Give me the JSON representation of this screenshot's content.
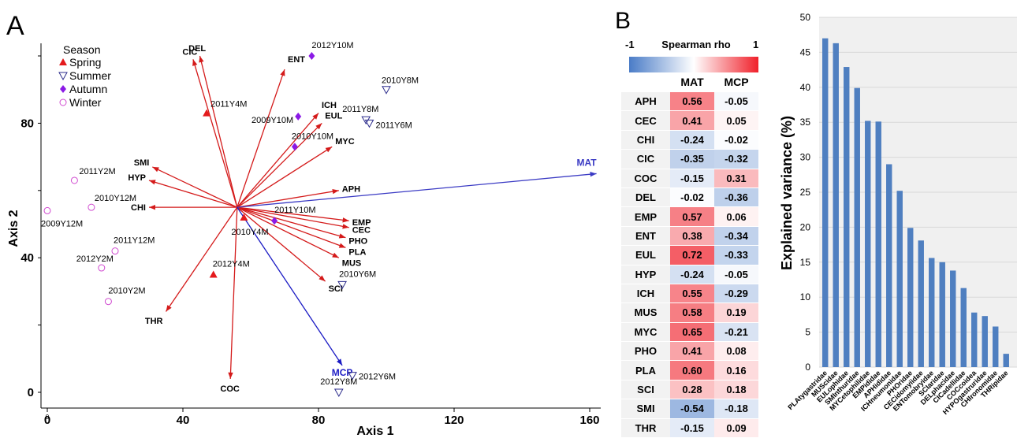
{
  "panel_a_label": "A",
  "panel_b_label": "B",
  "chart_data": [
    {
      "type": "scatter",
      "subtype": "biplot",
      "xlabel": "Axis 1",
      "ylabel": "Axis 2",
      "xlim": [
        0,
        160
      ],
      "ylim": [
        0,
        100
      ],
      "xticks": [
        0,
        40,
        80,
        120,
        160
      ],
      "yticks": [
        0,
        40,
        80
      ],
      "small_tick_label": "0",
      "legend_position": "top-left",
      "legend_title": "Season",
      "seasons": [
        {
          "name": "Spring",
          "marker": "triangle-up",
          "color": "#e41a1c"
        },
        {
          "name": "Summer",
          "marker": "triangle-down-open",
          "color": "#2c2c8c"
        },
        {
          "name": "Autumn",
          "marker": "diamond",
          "color": "#8b1ae6"
        },
        {
          "name": "Winter",
          "marker": "circle-open",
          "color": "#d04ad0"
        }
      ],
      "origin": [
        56,
        55
      ],
      "taxa_arrows": [
        {
          "label": "DEL",
          "x": 45,
          "y": 100
        },
        {
          "label": "CIC",
          "x": 43,
          "y": 99
        },
        {
          "label": "ENT",
          "x": 70,
          "y": 96
        },
        {
          "label": "ICH",
          "x": 80,
          "y": 83
        },
        {
          "label": "EUL",
          "x": 81,
          "y": 80
        },
        {
          "label": "MYC",
          "x": 84,
          "y": 73
        },
        {
          "label": "SMI",
          "x": 31,
          "y": 67
        },
        {
          "label": "HYP",
          "x": 30,
          "y": 63
        },
        {
          "label": "APH",
          "x": 86,
          "y": 60
        },
        {
          "label": "CHI",
          "x": 30,
          "y": 55
        },
        {
          "label": "EMP",
          "x": 89,
          "y": 51
        },
        {
          "label": "CEC",
          "x": 89,
          "y": 49
        },
        {
          "label": "PHO",
          "x": 88,
          "y": 46
        },
        {
          "label": "PLA",
          "x": 88,
          "y": 43
        },
        {
          "label": "MUS",
          "x": 86,
          "y": 40
        },
        {
          "label": "SCI",
          "x": 82,
          "y": 33
        },
        {
          "label": "THR",
          "x": 35,
          "y": 24
        },
        {
          "label": "COC",
          "x": 54,
          "y": 4
        }
      ],
      "env_arrows": [
        {
          "label": "MAT",
          "x": 162,
          "y": 65,
          "color": "#3b3bc4"
        },
        {
          "label": "MCP",
          "x": 87,
          "y": 8,
          "color": "#1b1bc4"
        }
      ],
      "samples": [
        {
          "label": "2011Y4M",
          "season": "Spring",
          "x": 47,
          "y": 83
        },
        {
          "label": "2010Y4M",
          "season": "Spring",
          "x": 58,
          "y": 52
        },
        {
          "label": "2012Y4M",
          "season": "Spring",
          "x": 49,
          "y": 35
        },
        {
          "label": "2010Y8M",
          "season": "Summer",
          "x": 100,
          "y": 90
        },
        {
          "label": "2011Y8M",
          "season": "Summer",
          "x": 94,
          "y": 81
        },
        {
          "label": "2011Y6M",
          "season": "Summer",
          "x": 95,
          "y": 80
        },
        {
          "label": "2010Y6M",
          "season": "Summer",
          "x": 87,
          "y": 32
        },
        {
          "label": "2012Y6M",
          "season": "Summer",
          "x": 90,
          "y": 5
        },
        {
          "label": "2012Y8M",
          "season": "Summer",
          "x": 86,
          "y": 0
        },
        {
          "label": "2012Y10M",
          "season": "Autumn",
          "x": 78,
          "y": 100
        },
        {
          "label": "2009Y10M",
          "season": "Autumn",
          "x": 74,
          "y": 82
        },
        {
          "label": "2010Y10M",
          "season": "Autumn",
          "x": 73,
          "y": 73
        },
        {
          "label": "2011Y10M",
          "season": "Autumn",
          "x": 67,
          "y": 51
        },
        {
          "label": "2011Y2M",
          "season": "Winter",
          "x": 8,
          "y": 63
        },
        {
          "label": "2010Y12M",
          "season": "Winter",
          "x": 13,
          "y": 55
        },
        {
          "label": "2009Y12M",
          "season": "Winter",
          "x": 0,
          "y": 54
        },
        {
          "label": "2011Y12M",
          "season": "Winter",
          "x": 20,
          "y": 42
        },
        {
          "label": "2012Y2M",
          "season": "Winter",
          "x": 16,
          "y": 37
        },
        {
          "label": "2010Y2M",
          "season": "Winter",
          "x": 18,
          "y": 27
        }
      ]
    },
    {
      "type": "heatmap",
      "title": "Spearman rho",
      "scale_min_label": "-1",
      "scale_max_label": "1",
      "scale_min": -1,
      "scale_max": 1,
      "colors": {
        "negative": "#4a7cc7",
        "zero": "#ffffff",
        "positive": "#f0202a"
      },
      "columns": [
        "MAT",
        "MCP"
      ],
      "rows": [
        {
          "label": "APH",
          "values": [
            0.56,
            -0.05
          ],
          "text": [
            "0.56",
            "-0.05"
          ]
        },
        {
          "label": "CEC",
          "values": [
            0.41,
            0.05
          ],
          "text": [
            "0.41",
            "0.05"
          ]
        },
        {
          "label": "CHI",
          "values": [
            -0.24,
            -0.02
          ],
          "text": [
            "-0.24",
            "-0.02"
          ]
        },
        {
          "label": "CIC",
          "values": [
            -0.35,
            -0.32
          ],
          "text": [
            "-0.35",
            "-0.32"
          ]
        },
        {
          "label": "COC",
          "values": [
            -0.15,
            0.31
          ],
          "text": [
            "-0.15",
            "0.31"
          ]
        },
        {
          "label": "DEL",
          "values": [
            -0.02,
            -0.36
          ],
          "text": [
            "-0.02",
            "-0.36"
          ]
        },
        {
          "label": "EMP",
          "values": [
            0.57,
            0.06
          ],
          "text": [
            "0.57",
            "0.06"
          ]
        },
        {
          "label": "ENT",
          "values": [
            0.38,
            -0.34
          ],
          "text": [
            "0.38",
            "-0.34"
          ]
        },
        {
          "label": "EUL",
          "values": [
            0.72,
            -0.33
          ],
          "text": [
            "0.72",
            "-0.33"
          ]
        },
        {
          "label": "HYP",
          "values": [
            -0.24,
            -0.05
          ],
          "text": [
            "-0.24",
            "-0.05"
          ]
        },
        {
          "label": "ICH",
          "values": [
            0.55,
            -0.29
          ],
          "text": [
            "0.55",
            "-0.29"
          ]
        },
        {
          "label": "MUS",
          "values": [
            0.58,
            0.19
          ],
          "text": [
            "0.58",
            "0.19"
          ]
        },
        {
          "label": "MYC",
          "values": [
            0.65,
            -0.21
          ],
          "text": [
            "0.65",
            "-0.21"
          ]
        },
        {
          "label": "PHO",
          "values": [
            0.41,
            0.08
          ],
          "text": [
            "0.41",
            "0.08"
          ]
        },
        {
          "label": "PLA",
          "values": [
            0.6,
            0.16
          ],
          "text": [
            "0.60",
            "0.16"
          ]
        },
        {
          "label": "SCI",
          "values": [
            0.28,
            0.18
          ],
          "text": [
            "0.28",
            "0.18"
          ]
        },
        {
          "label": "SMI",
          "values": [
            -0.54,
            -0.18
          ],
          "text": [
            "-0.54",
            "-0.18"
          ]
        },
        {
          "label": "THR",
          "values": [
            -0.15,
            0.09
          ],
          "text": [
            "-0.15",
            "0.09"
          ]
        }
      ]
    },
    {
      "type": "bar",
      "ylabel": "Explained variance (%)",
      "xlabel": "",
      "ylim": [
        0,
        50
      ],
      "yticks": [
        0,
        5,
        10,
        15,
        20,
        25,
        30,
        35,
        40,
        45,
        50
      ],
      "grid": true,
      "bar_color": "#4f7fc0",
      "categories": [
        "PLAtygastridae",
        "MUScidae",
        "EULophidae",
        "SMInthuridae",
        "MYCetophilidae",
        "EMPididae",
        "APHididae",
        "ICHneumonidae",
        "PHOridae",
        "CECidomyiidae",
        "ENTomobryidae",
        "SCIaridae",
        "DELphacidae",
        "CICadellidae",
        "COCcoidea",
        "HYPOgastruridae",
        "CHIronomidae",
        "THRipidae"
      ],
      "values": [
        47.0,
        46.3,
        42.9,
        39.9,
        35.2,
        35.1,
        29.0,
        25.2,
        19.9,
        18.1,
        15.6,
        15.0,
        13.8,
        11.3,
        7.8,
        7.3,
        5.8,
        1.9
      ]
    }
  ]
}
